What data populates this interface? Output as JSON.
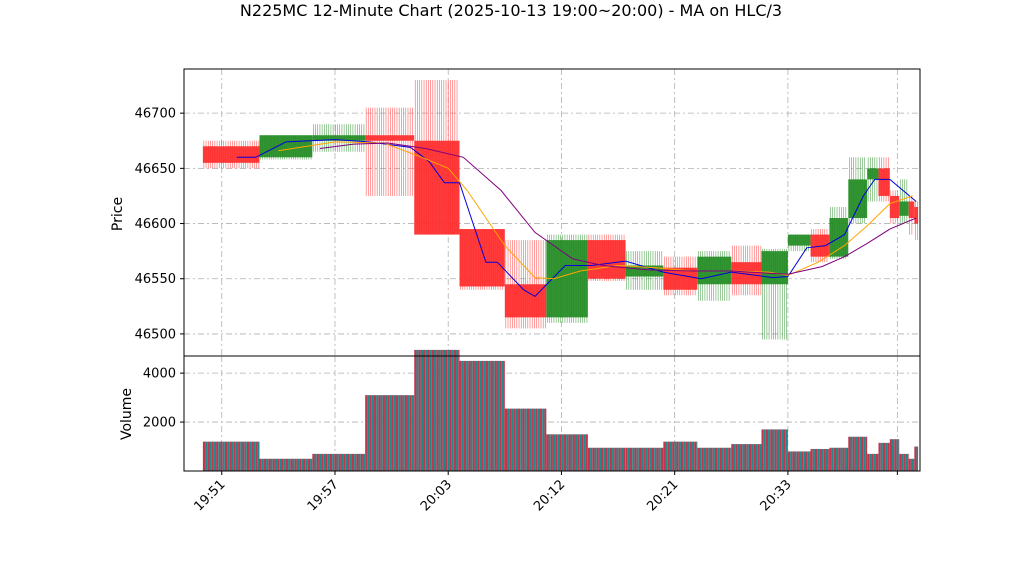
{
  "chart_data": {
    "type": "candlestick",
    "title": "N225MC 12-Minute Chart (2025-10-13 19:00~20:00) - MA on HLC/3",
    "price_panel": {
      "ylabel": "Price",
      "yticks": [
        46500,
        46550,
        46600,
        46650,
        46700
      ],
      "ylim": [
        46480,
        46740
      ],
      "grid": true
    },
    "volume_panel": {
      "ylabel": "Volume",
      "yticks": [
        2000,
        4000
      ],
      "ylim": [
        0,
        4700
      ],
      "grid": true
    },
    "x_ticks": [
      {
        "label": "19:51",
        "x": 0.5
      },
      {
        "label": "19:57",
        "x": 3.5
      },
      {
        "label": "20:03",
        "x": 6.5
      },
      {
        "label": "20:12",
        "x": 9.5
      },
      {
        "label": "20:21",
        "x": 12.5
      },
      {
        "label": "20:33",
        "x": 15.5
      },
      {
        "label": "",
        "x": 18.4
      }
    ],
    "xlim": [
      -0.5,
      19.0
    ],
    "candles": [
      {
        "x0": 0,
        "x1": 1.5,
        "open": 46670,
        "high": 46675,
        "low": 46650,
        "close": 46655,
        "volume": 1200
      },
      {
        "x0": 1.5,
        "x1": 2.9,
        "open": 46660,
        "high": 46680,
        "low": 46658,
        "close": 46680,
        "volume": 500
      },
      {
        "x0": 2.9,
        "x1": 4.3,
        "open": 46675,
        "high": 46690,
        "low": 46665,
        "close": 46680,
        "volume": 700
      },
      {
        "x0": 4.3,
        "x1": 5.6,
        "open": 46680,
        "high": 46705,
        "low": 46625,
        "close": 46675,
        "volume": 3100
      },
      {
        "x0": 5.6,
        "x1": 6.8,
        "open": 46675,
        "high": 46730,
        "low": 46590,
        "close": 46590,
        "volume": 4950
      },
      {
        "x0": 6.8,
        "x1": 8.0,
        "open": 46595,
        "high": 46595,
        "low": 46540,
        "close": 46543,
        "volume": 4500
      },
      {
        "x0": 8.0,
        "x1": 9.1,
        "open": 46545,
        "high": 46585,
        "low": 46505,
        "close": 46515,
        "volume": 2550
      },
      {
        "x0": 9.1,
        "x1": 10.2,
        "open": 46515,
        "high": 46590,
        "low": 46510,
        "close": 46585,
        "volume": 1500
      },
      {
        "x0": 10.2,
        "x1": 11.2,
        "open": 46585,
        "high": 46590,
        "low": 46548,
        "close": 46550,
        "volume": 950
      },
      {
        "x0": 11.2,
        "x1": 12.2,
        "open": 46552,
        "high": 46575,
        "low": 46540,
        "close": 46562,
        "volume": 950
      },
      {
        "x0": 12.2,
        "x1": 13.1,
        "open": 46560,
        "high": 46570,
        "low": 46535,
        "close": 46540,
        "volume": 1200
      },
      {
        "x0": 13.1,
        "x1": 14.0,
        "open": 46545,
        "high": 46575,
        "low": 46530,
        "close": 46570,
        "volume": 950
      },
      {
        "x0": 14.0,
        "x1": 14.8,
        "open": 46565,
        "high": 46580,
        "low": 46535,
        "close": 46545,
        "volume": 1100
      },
      {
        "x0": 14.8,
        "x1": 15.5,
        "open": 46545,
        "high": 46577,
        "low": 46495,
        "close": 46575,
        "volume": 1700
      },
      {
        "x0": 15.5,
        "x1": 16.1,
        "open": 46580,
        "high": 46590,
        "low": 46575,
        "close": 46590,
        "volume": 800
      },
      {
        "x0": 16.1,
        "x1": 16.6,
        "open": 46590,
        "high": 46595,
        "low": 46565,
        "close": 46570,
        "volume": 900
      },
      {
        "x0": 16.6,
        "x1": 17.1,
        "open": 46570,
        "high": 46615,
        "low": 46568,
        "close": 46605,
        "volume": 950
      },
      {
        "x0": 17.1,
        "x1": 17.6,
        "open": 46605,
        "high": 46660,
        "low": 46600,
        "close": 46640,
        "volume": 1400
      },
      {
        "x0": 17.6,
        "x1": 17.9,
        "open": 46640,
        "high": 46660,
        "low": 46620,
        "close": 46650,
        "volume": 700
      },
      {
        "x0": 17.9,
        "x1": 18.2,
        "open": 46650,
        "high": 46660,
        "low": 46620,
        "close": 46625,
        "volume": 1150
      },
      {
        "x0": 18.2,
        "x1": 18.45,
        "open": 46625,
        "high": 46630,
        "low": 46600,
        "close": 46605,
        "volume": 1300
      },
      {
        "x0": 18.45,
        "x1": 18.7,
        "open": 46607,
        "high": 46640,
        "low": 46600,
        "close": 46620,
        "volume": 700
      },
      {
        "x0": 18.7,
        "x1": 18.85,
        "open": 46620,
        "high": 46625,
        "low": 46590,
        "close": 46605,
        "volume": 500
      },
      {
        "x0": 18.85,
        "x1": 18.95,
        "open": 46615,
        "high": 46620,
        "low": 46585,
        "close": 46600,
        "volume": 1000
      }
    ],
    "ma_series": [
      {
        "color": "#0000dd",
        "points": [
          [
            0.9,
            46660
          ],
          [
            1.4,
            46660
          ],
          [
            2.2,
            46674
          ],
          [
            3.5,
            46676
          ],
          [
            4.4,
            46674
          ],
          [
            5.5,
            46669
          ],
          [
            6.0,
            46656
          ],
          [
            6.4,
            46637
          ],
          [
            6.8,
            46637
          ],
          [
            7.5,
            46565
          ],
          [
            7.8,
            46565
          ],
          [
            8.5,
            46540
          ],
          [
            8.8,
            46534
          ],
          [
            9.6,
            46562
          ],
          [
            10.3,
            46562
          ],
          [
            11.2,
            46566
          ],
          [
            12.2,
            46556
          ],
          [
            13.2,
            46550
          ],
          [
            14.0,
            46556
          ],
          [
            15.1,
            46551
          ],
          [
            15.5,
            46552
          ],
          [
            16.0,
            46578
          ],
          [
            16.5,
            46580
          ],
          [
            17.0,
            46590
          ],
          [
            17.5,
            46625
          ],
          [
            17.8,
            46640
          ],
          [
            18.2,
            46640
          ],
          [
            18.9,
            46620
          ]
        ]
      },
      {
        "color": "#ffa500",
        "points": [
          [
            2.0,
            46666
          ],
          [
            3.5,
            46674
          ],
          [
            4.8,
            46673
          ],
          [
            5.8,
            46660
          ],
          [
            6.5,
            46650
          ],
          [
            7.0,
            46630
          ],
          [
            8.0,
            46580
          ],
          [
            8.8,
            46551
          ],
          [
            9.3,
            46550
          ],
          [
            10.0,
            46557
          ],
          [
            11.0,
            46562
          ],
          [
            12.0,
            46560
          ],
          [
            13.0,
            46557
          ],
          [
            14.0,
            46557
          ],
          [
            15.0,
            46556
          ],
          [
            15.5,
            46553
          ],
          [
            16.3,
            46565
          ],
          [
            17.0,
            46580
          ],
          [
            17.6,
            46598
          ],
          [
            18.2,
            46618
          ],
          [
            18.8,
            46625
          ]
        ]
      },
      {
        "color": "#800080",
        "points": [
          [
            3.1,
            46668
          ],
          [
            4.0,
            46672
          ],
          [
            4.9,
            46673
          ],
          [
            5.9,
            46668
          ],
          [
            6.9,
            46660
          ],
          [
            7.9,
            46630
          ],
          [
            8.8,
            46592
          ],
          [
            9.8,
            46568
          ],
          [
            10.6,
            46562
          ],
          [
            11.8,
            46558
          ],
          [
            13.0,
            46557
          ],
          [
            14.0,
            46557
          ],
          [
            15.0,
            46555
          ],
          [
            15.5,
            46554
          ],
          [
            16.4,
            46561
          ],
          [
            17.0,
            46570
          ],
          [
            17.6,
            46582
          ],
          [
            18.2,
            46595
          ],
          [
            18.9,
            46605
          ]
        ]
      }
    ],
    "colors": {
      "up": "#228b22",
      "down": "#ff2a2a",
      "volume_a": "#c0364e",
      "volume_b": "#1f8a8a",
      "grid": "#b0b0b0"
    }
  }
}
